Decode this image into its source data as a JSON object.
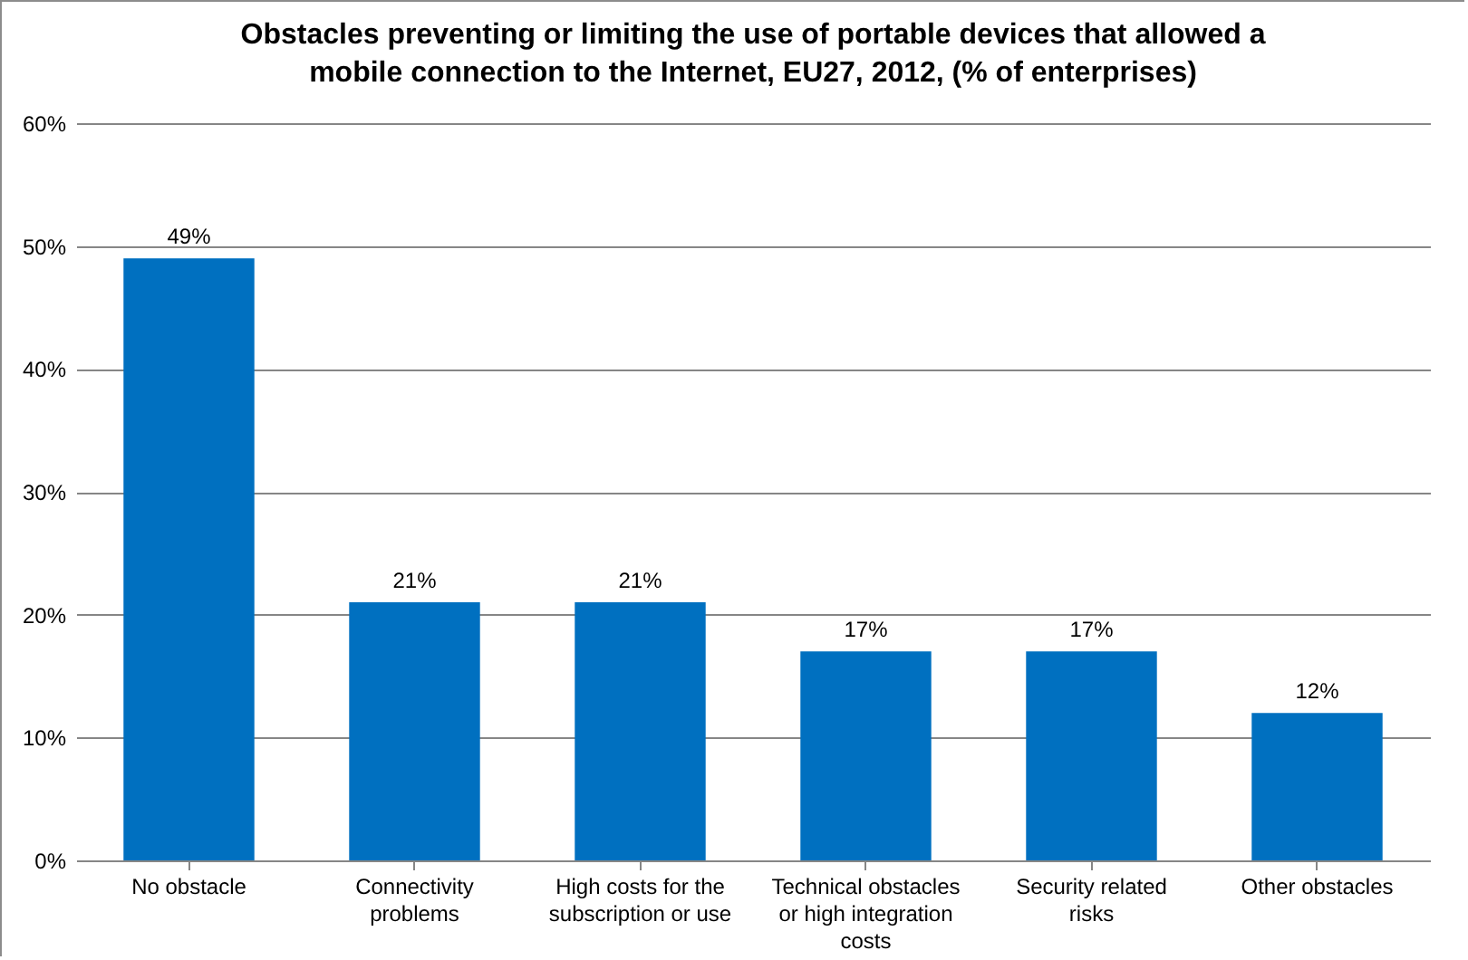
{
  "chart_data": {
    "type": "bar",
    "title": "Obstacles preventing or limiting the use of portable devices that allowed a mobile connection to the Internet, EU27, 2012, (% of enterprises)",
    "categories": [
      "No obstacle",
      "Connectivity problems",
      "High costs for the subscription or use",
      "Technical obstacles or high integration costs",
      "Security related risks",
      "Other obstacles"
    ],
    "values": [
      49,
      21,
      21,
      17,
      17,
      12
    ],
    "color": "#0070c0",
    "ylim": [
      0,
      60
    ],
    "yticks": [
      {
        "value": 0,
        "label": "0%"
      },
      {
        "value": 10,
        "label": "10%"
      },
      {
        "value": 20,
        "label": "20%"
      },
      {
        "value": 30,
        "label": "30%"
      },
      {
        "value": 40,
        "label": "40%"
      },
      {
        "value": 50,
        "label": "50%"
      },
      {
        "value": 60,
        "label": "60%"
      }
    ],
    "value_labels": [
      "49%",
      "21%",
      "21%",
      "17%",
      "17%",
      "12%"
    ],
    "grid": "y"
  }
}
